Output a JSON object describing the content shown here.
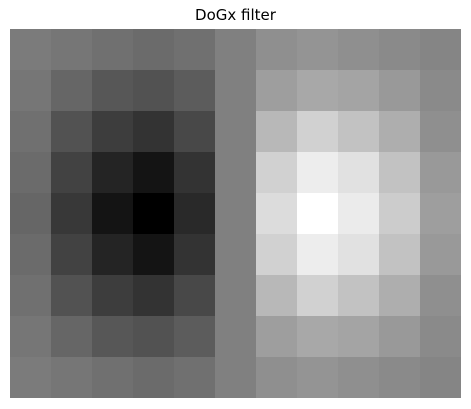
{
  "title": "DoGx filter",
  "image": {
    "colormap": "gray",
    "pixel_gray_levels": [
      [
        123,
        118,
        112,
        107,
        112,
        128,
        143,
        148,
        143,
        138,
        133
      ],
      [
        118,
        102,
        87,
        82,
        92,
        128,
        158,
        168,
        164,
        153,
        138
      ],
      [
        112,
        82,
        61,
        51,
        72,
        128,
        184,
        209,
        194,
        174,
        143
      ],
      [
        107,
        66,
        36,
        20,
        51,
        128,
        209,
        237,
        225,
        194,
        153
      ],
      [
        102,
        56,
        20,
        0,
        41,
        128,
        220,
        255,
        235,
        204,
        158
      ],
      [
        107,
        66,
        36,
        20,
        51,
        128,
        209,
        237,
        225,
        194,
        153
      ],
      [
        112,
        82,
        61,
        51,
        72,
        128,
        184,
        209,
        194,
        174,
        143
      ],
      [
        118,
        102,
        87,
        82,
        92,
        128,
        158,
        168,
        164,
        153,
        138
      ],
      [
        123,
        118,
        112,
        107,
        112,
        128,
        143,
        148,
        143,
        138,
        133
      ]
    ]
  }
}
